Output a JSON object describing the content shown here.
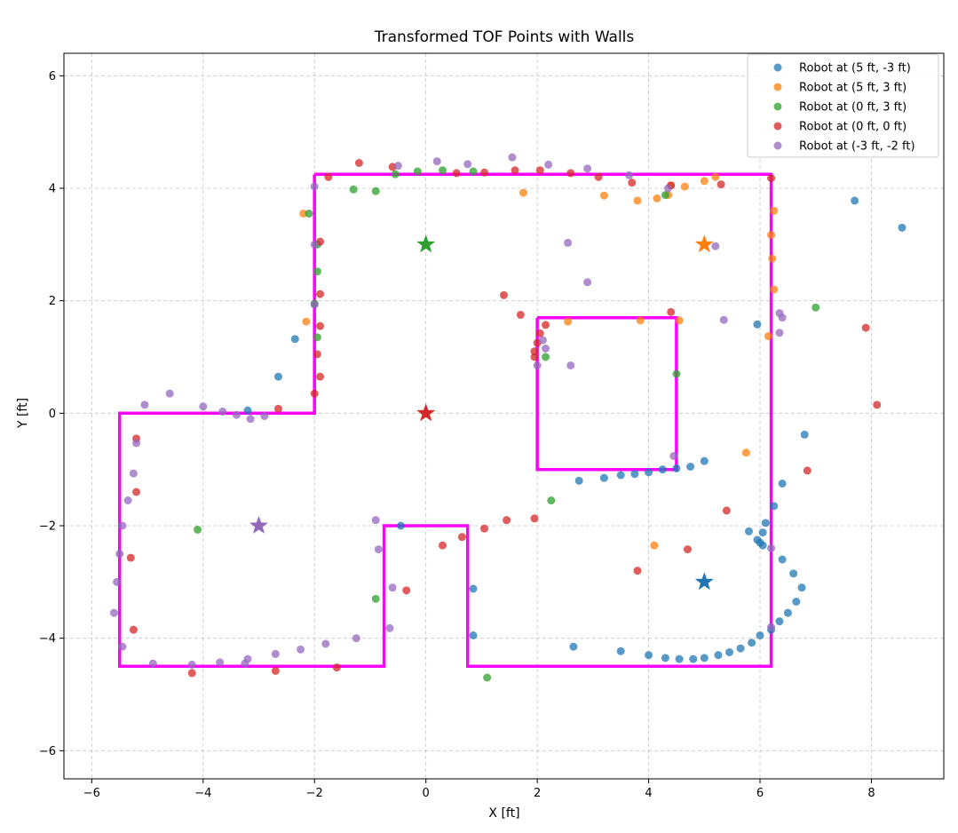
{
  "chart_data": {
    "type": "scatter",
    "title": "Transformed TOF Points with Walls",
    "xlabel": "X [ft]",
    "ylabel": "Y [ft]",
    "xlim": [
      -6.5,
      9.3
    ],
    "ylim": [
      -6.5,
      6.4
    ],
    "xticks": [
      -6,
      -4,
      -2,
      0,
      2,
      4,
      6,
      8
    ],
    "yticks": [
      -6,
      -4,
      -2,
      0,
      2,
      4,
      6
    ],
    "grid": true,
    "legend_position": "top-right",
    "walls": {
      "color": "#ff00ff",
      "outer": [
        [
          -2,
          4.25
        ],
        [
          6.2,
          4.25
        ],
        [
          6.2,
          -4.5
        ],
        [
          0.75,
          -4.5
        ],
        [
          0.75,
          -2
        ],
        [
          -0.75,
          -2
        ],
        [
          -0.75,
          -4.5
        ],
        [
          -5.5,
          -4.5
        ],
        [
          -5.5,
          0
        ],
        [
          -2,
          0
        ],
        [
          -2,
          4.25
        ]
      ],
      "inner": [
        [
          2,
          1.7
        ],
        [
          4.5,
          1.7
        ],
        [
          4.5,
          -1
        ],
        [
          2,
          -1
        ],
        [
          2,
          1.7
        ]
      ]
    },
    "series": [
      {
        "name": "Robot at (5 ft, -3 ft)",
        "color": "#1f77b4",
        "robot": [
          5,
          -3
        ],
        "points": [
          [
            7.7,
            3.78
          ],
          [
            8.55,
            3.3
          ],
          [
            5.95,
            1.58
          ],
          [
            6.8,
            -0.38
          ],
          [
            5,
            -0.85
          ],
          [
            4.75,
            -0.95
          ],
          [
            4.5,
            -0.98
          ],
          [
            4.25,
            -1.0
          ],
          [
            4.0,
            -1.05
          ],
          [
            3.75,
            -1.08
          ],
          [
            3.5,
            -1.1
          ],
          [
            3.2,
            -1.15
          ],
          [
            2.75,
            -1.2
          ],
          [
            6.4,
            -1.25
          ],
          [
            6.25,
            -1.65
          ],
          [
            6.1,
            -1.95
          ],
          [
            5.8,
            -2.1
          ],
          [
            6.05,
            -2.12
          ],
          [
            5.95,
            -2.25
          ],
          [
            6.0,
            -2.3
          ],
          [
            6.05,
            -2.35
          ],
          [
            6.4,
            -2.6
          ],
          [
            6.6,
            -2.85
          ],
          [
            6.75,
            -3.1
          ],
          [
            6.65,
            -3.35
          ],
          [
            6.5,
            -3.55
          ],
          [
            6.35,
            -3.7
          ],
          [
            6.2,
            -3.85
          ],
          [
            6.0,
            -3.95
          ],
          [
            5.85,
            -4.08
          ],
          [
            5.65,
            -4.18
          ],
          [
            5.45,
            -4.25
          ],
          [
            5.25,
            -4.3
          ],
          [
            5.0,
            -4.35
          ],
          [
            4.8,
            -4.37
          ],
          [
            4.55,
            -4.37
          ],
          [
            4.3,
            -4.35
          ],
          [
            4.0,
            -4.3
          ],
          [
            3.5,
            -4.23
          ],
          [
            2.65,
            -4.15
          ],
          [
            0.85,
            -3.12
          ],
          [
            0.85,
            -3.95
          ],
          [
            -0.45,
            -2.0
          ],
          [
            -2.65,
            0.65
          ],
          [
            -2.35,
            1.32
          ],
          [
            -3.2,
            0.05
          ]
        ]
      },
      {
        "name": "Robot at (5 ft, 3 ft)",
        "color": "#ff7f0e",
        "robot": [
          5,
          3
        ],
        "points": [
          [
            5.2,
            4.2
          ],
          [
            5.0,
            4.13
          ],
          [
            4.65,
            4.03
          ],
          [
            4.4,
            4.05
          ],
          [
            4.35,
            3.88
          ],
          [
            4.15,
            3.82
          ],
          [
            3.8,
            3.78
          ],
          [
            3.2,
            3.87
          ],
          [
            1.75,
            3.92
          ],
          [
            -2.2,
            3.55
          ],
          [
            -2.15,
            1.63
          ],
          [
            6.25,
            3.6
          ],
          [
            6.2,
            3.17
          ],
          [
            6.22,
            2.75
          ],
          [
            6.25,
            2.2
          ],
          [
            6.15,
            1.37
          ],
          [
            4.55,
            1.65
          ],
          [
            3.85,
            1.65
          ],
          [
            2.55,
            1.63
          ],
          [
            5.75,
            -0.7
          ],
          [
            4.1,
            -2.35
          ]
        ]
      },
      {
        "name": "Robot at (0 ft, 3 ft)",
        "color": "#2ca02c",
        "robot": [
          0,
          3
        ],
        "points": [
          [
            -2.1,
            3.55
          ],
          [
            -1.95,
            3.0
          ],
          [
            -1.95,
            2.52
          ],
          [
            -2.0,
            1.95
          ],
          [
            -1.95,
            1.35
          ],
          [
            -1.3,
            3.98
          ],
          [
            -0.9,
            3.95
          ],
          [
            -0.55,
            4.25
          ],
          [
            -0.15,
            4.3
          ],
          [
            0.3,
            4.32
          ],
          [
            0.85,
            4.3
          ],
          [
            4.3,
            3.88
          ],
          [
            7.0,
            1.88
          ],
          [
            2.15,
            1.0
          ],
          [
            4.5,
            0.7
          ],
          [
            2.25,
            -1.55
          ],
          [
            -0.9,
            -3.3
          ],
          [
            -4.1,
            -2.07
          ],
          [
            1.1,
            -4.7
          ]
        ]
      },
      {
        "name": "Robot at (0 ft, 0 ft)",
        "color": "#d62728",
        "robot": [
          0,
          0
        ],
        "points": [
          [
            -1.2,
            4.45
          ],
          [
            -1.75,
            4.2
          ],
          [
            -0.6,
            4.38
          ],
          [
            0.55,
            4.27
          ],
          [
            1.05,
            4.28
          ],
          [
            1.6,
            4.32
          ],
          [
            2.05,
            4.32
          ],
          [
            2.6,
            4.27
          ],
          [
            3.1,
            4.2
          ],
          [
            3.7,
            4.1
          ],
          [
            4.4,
            4.05
          ],
          [
            5.3,
            4.07
          ],
          [
            6.2,
            4.18
          ],
          [
            -1.9,
            3.05
          ],
          [
            -1.9,
            2.12
          ],
          [
            -1.9,
            1.55
          ],
          [
            -1.95,
            1.05
          ],
          [
            -1.9,
            0.65
          ],
          [
            -2.0,
            0.35
          ],
          [
            -2.65,
            0.08
          ],
          [
            1.4,
            2.1
          ],
          [
            1.7,
            1.75
          ],
          [
            2.15,
            1.57
          ],
          [
            2.05,
            1.42
          ],
          [
            2.0,
            1.25
          ],
          [
            1.95,
            1.1
          ],
          [
            1.95,
            1.0
          ],
          [
            4.4,
            1.8
          ],
          [
            7.9,
            1.52
          ],
          [
            8.1,
            0.15
          ],
          [
            6.85,
            -1.02
          ],
          [
            5.4,
            -1.73
          ],
          [
            4.7,
            -2.42
          ],
          [
            3.8,
            -2.8
          ],
          [
            1.95,
            -1.87
          ],
          [
            1.45,
            -1.9
          ],
          [
            1.05,
            -2.05
          ],
          [
            0.65,
            -2.2
          ],
          [
            0.3,
            -2.35
          ],
          [
            -0.35,
            -3.15
          ],
          [
            -5.2,
            -0.45
          ],
          [
            -5.2,
            -1.4
          ],
          [
            -5.3,
            -2.57
          ],
          [
            -5.25,
            -3.85
          ],
          [
            -4.2,
            -4.62
          ],
          [
            -2.7,
            -4.58
          ],
          [
            -1.6,
            -4.52
          ]
        ]
      },
      {
        "name": "Robot at (-3 ft, -2 ft)",
        "color": "#9467bd",
        "robot": [
          -3,
          -2
        ],
        "points": [
          [
            0.2,
            4.48
          ],
          [
            0.75,
            4.43
          ],
          [
            1.55,
            4.55
          ],
          [
            2.2,
            4.42
          ],
          [
            2.9,
            4.35
          ],
          [
            3.65,
            4.23
          ],
          [
            4.35,
            4.0
          ],
          [
            -0.5,
            4.4
          ],
          [
            -2.0,
            4.03
          ],
          [
            -2.0,
            3.0
          ],
          [
            -2.0,
            1.93
          ],
          [
            2.55,
            3.03
          ],
          [
            2.9,
            2.33
          ],
          [
            5.2,
            2.97
          ],
          [
            5.35,
            1.66
          ],
          [
            6.35,
            1.78
          ],
          [
            6.4,
            1.7
          ],
          [
            6.35,
            1.43
          ],
          [
            2.1,
            1.3
          ],
          [
            2.15,
            1.15
          ],
          [
            2.0,
            0.85
          ],
          [
            2.6,
            0.85
          ],
          [
            4.45,
            -0.76
          ],
          [
            -4.6,
            0.35
          ],
          [
            -5.05,
            0.15
          ],
          [
            -4.0,
            0.12
          ],
          [
            -3.65,
            0.03
          ],
          [
            -3.4,
            -0.03
          ],
          [
            -3.15,
            -0.1
          ],
          [
            -2.9,
            -0.05
          ],
          [
            -5.2,
            -0.53
          ],
          [
            -5.25,
            -1.07
          ],
          [
            -5.35,
            -1.55
          ],
          [
            -5.45,
            -2.0
          ],
          [
            -5.5,
            -2.5
          ],
          [
            -5.55,
            -3.0
          ],
          [
            -5.6,
            -3.55
          ],
          [
            -5.45,
            -4.15
          ],
          [
            -4.9,
            -4.45
          ],
          [
            -4.2,
            -4.47
          ],
          [
            -3.7,
            -4.43
          ],
          [
            -3.2,
            -4.37
          ],
          [
            -3.25,
            -4.45
          ],
          [
            -2.7,
            -4.28
          ],
          [
            -2.25,
            -4.2
          ],
          [
            -1.8,
            -4.1
          ],
          [
            -1.25,
            -4.0
          ],
          [
            -0.65,
            -3.82
          ],
          [
            -0.9,
            -1.9
          ],
          [
            -0.85,
            -2.42
          ],
          [
            -0.6,
            -3.1
          ],
          [
            6.2,
            -2.4
          ],
          [
            6.2,
            -3.8
          ]
        ]
      }
    ]
  }
}
